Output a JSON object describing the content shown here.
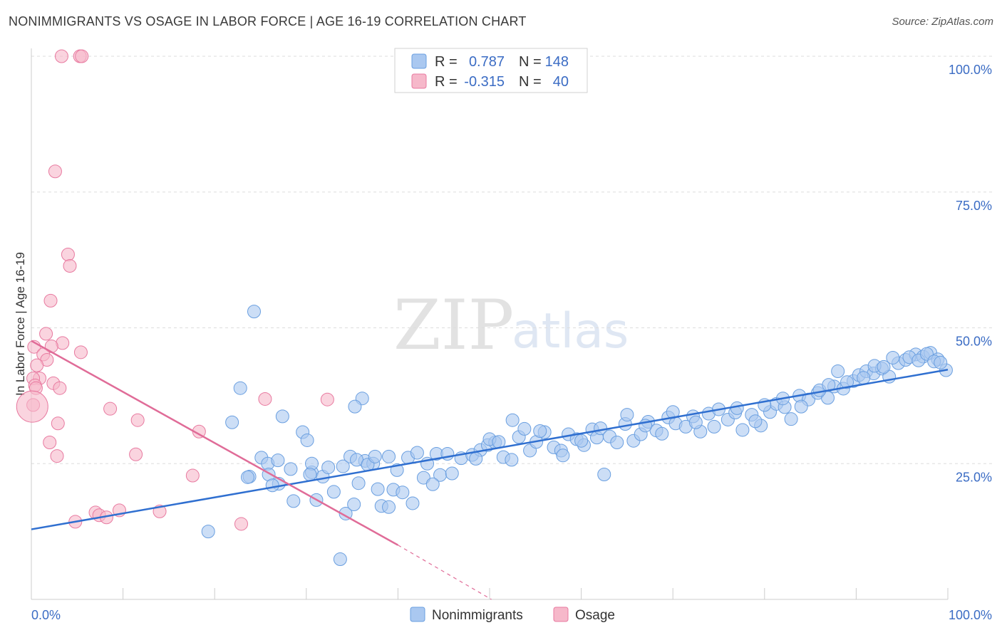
{
  "header": {
    "title": "NONIMMIGRANTS VS OSAGE IN LABOR FORCE | AGE 16-19 CORRELATION CHART",
    "source": "Source: ZipAtlas.com"
  },
  "watermark": {
    "zip": "ZIP",
    "atlas": "atlas"
  },
  "legend": {
    "rows": [
      {
        "r_label": "R =",
        "r_value": "0.787",
        "n_label": "N =",
        "n_value": "148",
        "color": "#aac8f0"
      },
      {
        "r_label": "R =",
        "r_value": "-0.315",
        "n_label": "N =",
        "n_value": "40",
        "color": "#f6b8ca"
      }
    ]
  },
  "bottom_legend": [
    {
      "label": "Nonimmigrants",
      "color": "#aac8f0"
    },
    {
      "label": "Osage",
      "color": "#f6b8ca"
    }
  ],
  "chart_data": {
    "type": "scatter",
    "xlabel": "",
    "ylabel": "In Labor Force | Age 16-19",
    "xlim": [
      0,
      100
    ],
    "ylim": [
      0,
      100
    ],
    "x_tick_labels": [
      "0.0%",
      "100.0%"
    ],
    "y_ticks": [
      25,
      50,
      75,
      100
    ],
    "y_tick_labels": [
      "25.0%",
      "50.0%",
      "75.0%",
      "100.0%"
    ],
    "grid": true,
    "legend_position": "top-center",
    "colors": {
      "nonimmigrants": "#6a9fe0",
      "nonimmigrants_fill": "#aac8f0",
      "osage": "#e87aa0",
      "osage_fill": "#f6b8ca",
      "blue_line": "#2f6fd0",
      "pink_line": "#e06c98"
    },
    "series": [
      {
        "name": "Nonimmigrants",
        "trend": {
          "x": [
            0,
            100
          ],
          "y": [
            12.9,
            42.3
          ]
        },
        "points": [
          [
            24.3,
            53.0
          ],
          [
            22.8,
            38.9
          ],
          [
            21.9,
            32.6
          ],
          [
            27.4,
            33.7
          ],
          [
            29.6,
            30.8
          ],
          [
            36.1,
            37.0
          ],
          [
            35.3,
            35.5
          ],
          [
            44.2,
            26.8
          ],
          [
            36.4,
            25.5
          ],
          [
            37.3,
            25.0
          ],
          [
            25.1,
            26.1
          ],
          [
            25.8,
            25.0
          ],
          [
            28.3,
            24.0
          ],
          [
            30.6,
            23.4
          ],
          [
            25.9,
            23.0
          ],
          [
            27.0,
            21.3
          ],
          [
            31.8,
            22.6
          ],
          [
            34.0,
            24.5
          ],
          [
            34.8,
            26.3
          ],
          [
            35.5,
            25.7
          ],
          [
            23.8,
            22.6
          ],
          [
            36.7,
            24.8
          ],
          [
            39.0,
            26.3
          ],
          [
            41.1,
            26.1
          ],
          [
            42.1,
            27.0
          ],
          [
            43.2,
            25.0
          ],
          [
            44.6,
            22.9
          ],
          [
            45.9,
            23.2
          ],
          [
            46.9,
            26.0
          ],
          [
            48.1,
            26.6
          ],
          [
            49.0,
            27.5
          ],
          [
            49.8,
            28.4
          ],
          [
            50.6,
            28.9
          ],
          [
            51.5,
            26.2
          ],
          [
            52.4,
            25.7
          ],
          [
            53.2,
            29.9
          ],
          [
            54.4,
            27.4
          ],
          [
            55.1,
            29.0
          ],
          [
            56.0,
            30.8
          ],
          [
            57.0,
            28.0
          ],
          [
            57.8,
            27.4
          ],
          [
            58.6,
            30.4
          ],
          [
            59.5,
            29.5
          ],
          [
            60.3,
            28.4
          ],
          [
            61.2,
            31.3
          ],
          [
            61.7,
            29.8
          ],
          [
            62.1,
            31.5
          ],
          [
            63.1,
            30.0
          ],
          [
            63.9,
            28.9
          ],
          [
            64.8,
            32.3
          ],
          [
            65.7,
            29.2
          ],
          [
            66.5,
            30.4
          ],
          [
            67.3,
            32.7
          ],
          [
            68.2,
            31.1
          ],
          [
            68.8,
            30.5
          ],
          [
            69.5,
            33.5
          ],
          [
            70.3,
            32.4
          ],
          [
            71.4,
            31.8
          ],
          [
            72.2,
            33.7
          ],
          [
            73.0,
            30.9
          ],
          [
            73.9,
            34.2
          ],
          [
            75.0,
            35.0
          ],
          [
            76.0,
            33.1
          ],
          [
            76.8,
            34.4
          ],
          [
            77.6,
            31.2
          ],
          [
            78.6,
            34.0
          ],
          [
            79.6,
            32.0
          ],
          [
            80.6,
            34.5
          ],
          [
            81.3,
            36.0
          ],
          [
            82.2,
            35.4
          ],
          [
            82.9,
            33.2
          ],
          [
            83.8,
            37.5
          ],
          [
            84.8,
            36.8
          ],
          [
            85.8,
            38.0
          ],
          [
            86.9,
            37.1
          ],
          [
            87.6,
            39.2
          ],
          [
            88.6,
            38.8
          ],
          [
            89.7,
            40.2
          ],
          [
            90.3,
            41.3
          ],
          [
            91.1,
            42.0
          ],
          [
            91.9,
            41.6
          ],
          [
            92.8,
            42.5
          ],
          [
            93.6,
            41.0
          ],
          [
            94.6,
            43.5
          ],
          [
            95.4,
            44.1
          ],
          [
            96.5,
            45.1
          ],
          [
            97.3,
            44.7
          ],
          [
            98.1,
            45.4
          ],
          [
            98.9,
            44.2
          ],
          [
            99.8,
            42.2
          ],
          [
            50.0,
            29.5
          ],
          [
            51.0,
            29.0
          ],
          [
            52.5,
            33.0
          ],
          [
            55.5,
            31.0
          ],
          [
            58.0,
            26.5
          ],
          [
            60.0,
            29.2
          ],
          [
            62.5,
            23.0
          ],
          [
            65.0,
            34.0
          ],
          [
            67.0,
            32.0
          ],
          [
            70.0,
            34.5
          ],
          [
            72.5,
            32.6
          ],
          [
            74.5,
            31.8
          ],
          [
            77.0,
            35.2
          ],
          [
            79.0,
            32.8
          ],
          [
            80.0,
            35.8
          ],
          [
            82.0,
            37.0
          ],
          [
            84.0,
            35.5
          ],
          [
            86.0,
            38.5
          ],
          [
            87.0,
            39.5
          ],
          [
            88.0,
            42.0
          ],
          [
            89.0,
            40.0
          ],
          [
            90.8,
            40.8
          ],
          [
            92.0,
            43.0
          ],
          [
            93.0,
            42.8
          ],
          [
            94.0,
            44.5
          ],
          [
            95.8,
            44.6
          ],
          [
            96.8,
            44.0
          ],
          [
            97.7,
            45.2
          ],
          [
            98.5,
            43.8
          ],
          [
            99.2,
            43.6
          ],
          [
            30.1,
            29.3
          ],
          [
            33.0,
            19.8
          ],
          [
            34.3,
            15.8
          ],
          [
            35.2,
            17.5
          ],
          [
            38.2,
            17.2
          ],
          [
            39.0,
            17.0
          ],
          [
            41.6,
            17.7
          ],
          [
            30.6,
            25.0
          ],
          [
            42.8,
            22.4
          ],
          [
            43.8,
            21.2
          ],
          [
            39.5,
            20.2
          ],
          [
            39.9,
            23.8
          ],
          [
            35.7,
            21.4
          ],
          [
            28.6,
            18.1
          ],
          [
            31.1,
            18.3
          ],
          [
            26.3,
            21.0
          ],
          [
            26.9,
            25.6
          ],
          [
            23.6,
            22.5
          ],
          [
            19.3,
            12.5
          ],
          [
            33.7,
            7.4
          ],
          [
            30.4,
            23.0
          ],
          [
            32.4,
            24.3
          ],
          [
            37.8,
            20.3
          ],
          [
            40.5,
            19.7
          ],
          [
            37.5,
            26.3
          ],
          [
            45.4,
            26.8
          ],
          [
            48.5,
            25.9
          ],
          [
            53.8,
            31.4
          ]
        ]
      },
      {
        "name": "Osage",
        "trend": {
          "x": [
            0,
            40.0
          ],
          "y": [
            47.6,
            10.0
          ]
        },
        "trend_dashed": {
          "x": [
            40.0,
            50.2
          ],
          "y": [
            10.0,
            0.0
          ]
        },
        "points": [
          [
            3.3,
            100.0
          ],
          [
            5.3,
            100.0
          ],
          [
            5.5,
            100.0
          ],
          [
            2.6,
            78.8
          ],
          [
            4.0,
            63.5
          ],
          [
            4.2,
            61.4
          ],
          [
            2.1,
            55.0
          ],
          [
            1.6,
            48.9
          ],
          [
            3.4,
            47.2
          ],
          [
            2.2,
            46.6
          ],
          [
            0.3,
            46.5
          ],
          [
            5.4,
            45.5
          ],
          [
            1.3,
            45.1
          ],
          [
            1.7,
            44.1
          ],
          [
            0.6,
            43.1
          ],
          [
            0.9,
            40.7
          ],
          [
            0.2,
            40.7
          ],
          [
            0.4,
            39.4
          ],
          [
            2.4,
            39.8
          ],
          [
            3.1,
            38.9
          ],
          [
            0.5,
            38.9
          ],
          [
            0.2,
            35.8
          ],
          [
            8.6,
            35.1
          ],
          [
            11.6,
            33.0
          ],
          [
            2.9,
            32.4
          ],
          [
            18.3,
            30.9
          ],
          [
            2.0,
            28.9
          ],
          [
            25.5,
            36.9
          ],
          [
            32.3,
            36.8
          ],
          [
            11.4,
            26.7
          ],
          [
            2.8,
            26.4
          ],
          [
            17.6,
            22.8
          ],
          [
            7.0,
            16.0
          ],
          [
            9.6,
            16.4
          ],
          [
            14.0,
            16.2
          ],
          [
            7.4,
            15.5
          ],
          [
            8.2,
            15.1
          ],
          [
            4.8,
            14.3
          ],
          [
            22.9,
            13.9
          ],
          [
            0.1,
            35.5
          ]
        ]
      }
    ]
  }
}
